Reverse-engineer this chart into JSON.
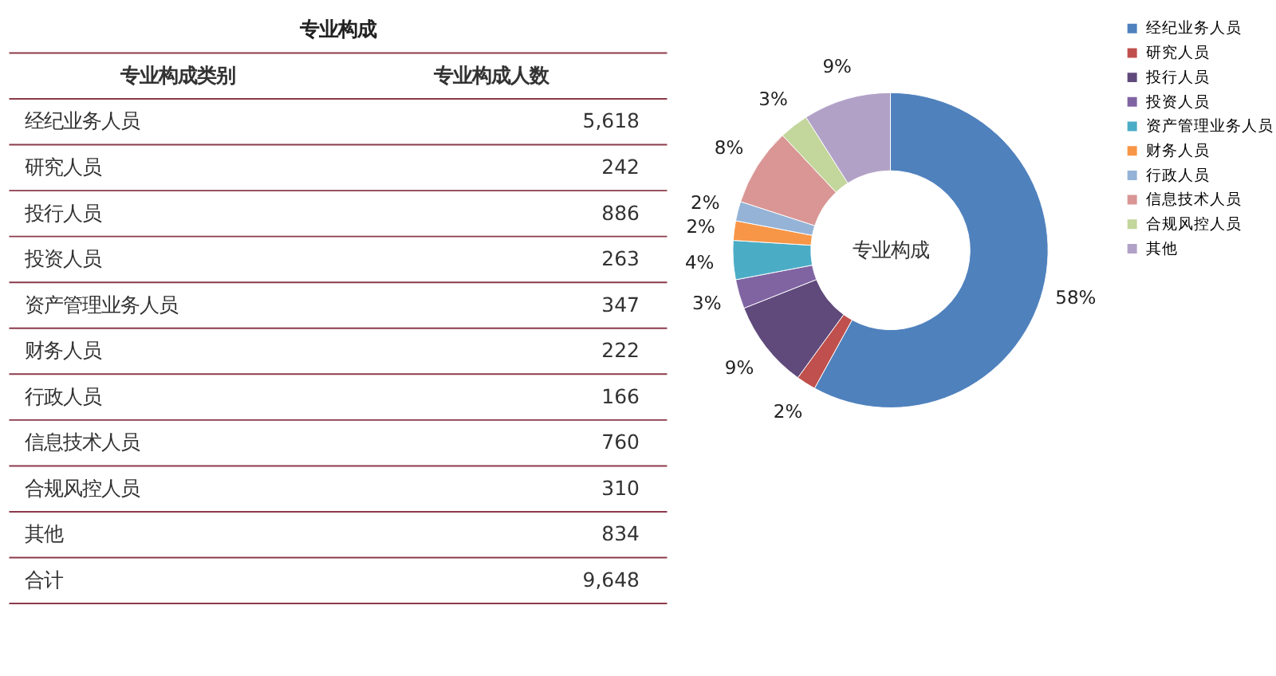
{
  "chart_data": [
    {
      "type": "other",
      "title": "专业构成",
      "annotations": [
        "专业构成类别",
        "专业构成人数",
        "经纪业务人员",
        "5,618",
        "研究人员",
        "242",
        "投行人员",
        "886",
        "投资人员",
        "263",
        "资产管理业务人员",
        "347",
        "财务人员",
        "222",
        "行政人员",
        "166",
        "信息技术人员",
        "760",
        "合规风控人员",
        "310",
        "其他",
        "834",
        "合计",
        "9,648"
      ]
    },
    {
      "type": "donut",
      "title": "专业构成",
      "legend": "right",
      "categories": [
        "经纪业务人员",
        "研究人员",
        "投行人员",
        "投资人员",
        "资产管理业务人员",
        "财务人员",
        "行政人员",
        "信息技术人员",
        "合规风控人员",
        "其他"
      ],
      "values": [
        58,
        2,
        9,
        3,
        4,
        2,
        2,
        8,
        3,
        9
      ],
      "value_labels": [
        "58%",
        "2%",
        "9%",
        "3%",
        "4%",
        "2%",
        "2%",
        "8%",
        "3%",
        "9%"
      ],
      "colors": [
        "#4f81bd",
        "#c0504d",
        "#604a7b",
        "#8064a2",
        "#4bacc6",
        "#f79646",
        "#95b3d7",
        "#d99694",
        "#c3d69b",
        "#b2a1c7"
      ]
    }
  ]
}
